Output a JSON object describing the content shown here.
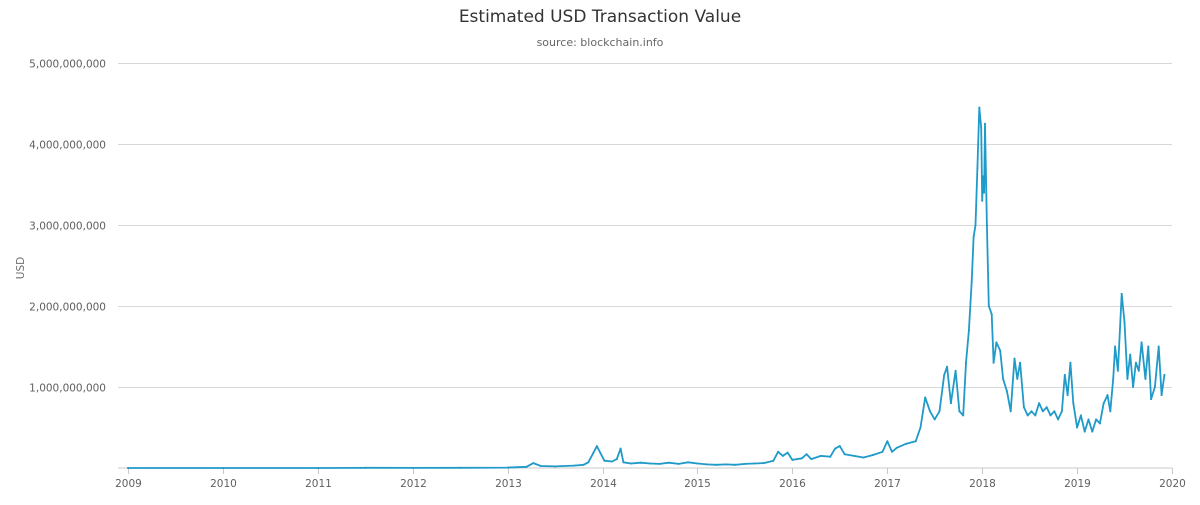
{
  "chart_data": {
    "type": "line",
    "title": "Estimated USD Transaction Value",
    "subtitle": "source: blockchain.info",
    "xlabel": "",
    "ylabel": "USD",
    "xlim": [
      2009.0,
      2020.0
    ],
    "ylim": [
      0,
      5000000000
    ],
    "grid": true,
    "legend": "none",
    "line_color": "#1f9ac9",
    "x_ticks": [
      {
        "value": 2009,
        "label": "2009"
      },
      {
        "value": 2010,
        "label": "2010"
      },
      {
        "value": 2011,
        "label": "2011"
      },
      {
        "value": 2012,
        "label": "2012"
      },
      {
        "value": 2013,
        "label": "2013"
      },
      {
        "value": 2014,
        "label": "2014"
      },
      {
        "value": 2015,
        "label": "2015"
      },
      {
        "value": 2016,
        "label": "2016"
      },
      {
        "value": 2017,
        "label": "2017"
      },
      {
        "value": 2018,
        "label": "2018"
      },
      {
        "value": 2019,
        "label": "2019"
      },
      {
        "value": 2020,
        "label": "2020"
      }
    ],
    "y_ticks": [
      {
        "value": 1000000000,
        "label": "1,000,000,000"
      },
      {
        "value": 2000000000,
        "label": "2,000,000,000"
      },
      {
        "value": 3000000000,
        "label": "3,000,000,000"
      },
      {
        "value": 4000000000,
        "label": "4,000,000,000"
      },
      {
        "value": 5000000000,
        "label": "5,000,000,000"
      }
    ],
    "series": [
      {
        "points": [
          [
            2009.0,
            0
          ],
          [
            2010.0,
            0
          ],
          [
            2011.0,
            0
          ],
          [
            2011.45,
            1000000
          ],
          [
            2011.5,
            3000000
          ],
          [
            2012.0,
            1000000
          ],
          [
            2012.5,
            2000000
          ],
          [
            2013.0,
            5000000
          ],
          [
            2013.2,
            15000000
          ],
          [
            2013.27,
            60000000
          ],
          [
            2013.35,
            25000000
          ],
          [
            2013.5,
            20000000
          ],
          [
            2013.7,
            30000000
          ],
          [
            2013.8,
            40000000
          ],
          [
            2013.85,
            70000000
          ],
          [
            2013.9,
            180000000
          ],
          [
            2013.94,
            270000000
          ],
          [
            2013.98,
            180000000
          ],
          [
            2014.02,
            90000000
          ],
          [
            2014.1,
            80000000
          ],
          [
            2014.15,
            110000000
          ],
          [
            2014.19,
            240000000
          ],
          [
            2014.22,
            70000000
          ],
          [
            2014.3,
            55000000
          ],
          [
            2014.4,
            65000000
          ],
          [
            2014.5,
            55000000
          ],
          [
            2014.6,
            50000000
          ],
          [
            2014.7,
            65000000
          ],
          [
            2014.8,
            50000000
          ],
          [
            2014.9,
            70000000
          ],
          [
            2015.0,
            55000000
          ],
          [
            2015.1,
            45000000
          ],
          [
            2015.2,
            40000000
          ],
          [
            2015.3,
            45000000
          ],
          [
            2015.4,
            40000000
          ],
          [
            2015.5,
            50000000
          ],
          [
            2015.6,
            55000000
          ],
          [
            2015.7,
            60000000
          ],
          [
            2015.8,
            90000000
          ],
          [
            2015.85,
            200000000
          ],
          [
            2015.9,
            150000000
          ],
          [
            2015.95,
            190000000
          ],
          [
            2016.0,
            100000000
          ],
          [
            2016.1,
            120000000
          ],
          [
            2016.15,
            170000000
          ],
          [
            2016.2,
            110000000
          ],
          [
            2016.3,
            150000000
          ],
          [
            2016.4,
            140000000
          ],
          [
            2016.45,
            240000000
          ],
          [
            2016.5,
            270000000
          ],
          [
            2016.55,
            170000000
          ],
          [
            2016.65,
            150000000
          ],
          [
            2016.75,
            130000000
          ],
          [
            2016.85,
            160000000
          ],
          [
            2016.95,
            200000000
          ],
          [
            2017.0,
            330000000
          ],
          [
            2017.05,
            200000000
          ],
          [
            2017.1,
            250000000
          ],
          [
            2017.2,
            300000000
          ],
          [
            2017.3,
            330000000
          ],
          [
            2017.35,
            500000000
          ],
          [
            2017.4,
            870000000
          ],
          [
            2017.45,
            700000000
          ],
          [
            2017.5,
            600000000
          ],
          [
            2017.55,
            700000000
          ],
          [
            2017.6,
            1150000000
          ],
          [
            2017.63,
            1250000000
          ],
          [
            2017.67,
            800000000
          ],
          [
            2017.72,
            1200000000
          ],
          [
            2017.76,
            700000000
          ],
          [
            2017.8,
            650000000
          ],
          [
            2017.83,
            1300000000
          ],
          [
            2017.86,
            1700000000
          ],
          [
            2017.89,
            2300000000
          ],
          [
            2017.91,
            2850000000
          ],
          [
            2017.93,
            3000000000
          ],
          [
            2017.95,
            3700000000
          ],
          [
            2017.97,
            4450000000
          ],
          [
            2017.99,
            4200000000
          ],
          [
            2018.0,
            3300000000
          ],
          [
            2018.01,
            3600000000
          ],
          [
            2018.02,
            3400000000
          ],
          [
            2018.03,
            4250000000
          ],
          [
            2018.05,
            3000000000
          ],
          [
            2018.07,
            2000000000
          ],
          [
            2018.1,
            1900000000
          ],
          [
            2018.12,
            1300000000
          ],
          [
            2018.15,
            1550000000
          ],
          [
            2018.19,
            1450000000
          ],
          [
            2018.22,
            1100000000
          ],
          [
            2018.26,
            950000000
          ],
          [
            2018.3,
            700000000
          ],
          [
            2018.34,
            1350000000
          ],
          [
            2018.37,
            1100000000
          ],
          [
            2018.4,
            1300000000
          ],
          [
            2018.44,
            750000000
          ],
          [
            2018.48,
            650000000
          ],
          [
            2018.52,
            700000000
          ],
          [
            2018.56,
            650000000
          ],
          [
            2018.6,
            800000000
          ],
          [
            2018.64,
            700000000
          ],
          [
            2018.68,
            750000000
          ],
          [
            2018.72,
            650000000
          ],
          [
            2018.76,
            700000000
          ],
          [
            2018.8,
            600000000
          ],
          [
            2018.84,
            700000000
          ],
          [
            2018.87,
            1150000000
          ],
          [
            2018.9,
            900000000
          ],
          [
            2018.93,
            1300000000
          ],
          [
            2018.96,
            800000000
          ],
          [
            2019.0,
            500000000
          ],
          [
            2019.04,
            650000000
          ],
          [
            2019.08,
            450000000
          ],
          [
            2019.12,
            600000000
          ],
          [
            2019.16,
            450000000
          ],
          [
            2019.2,
            600000000
          ],
          [
            2019.24,
            550000000
          ],
          [
            2019.28,
            800000000
          ],
          [
            2019.32,
            900000000
          ],
          [
            2019.35,
            700000000
          ],
          [
            2019.38,
            1100000000
          ],
          [
            2019.4,
            1500000000
          ],
          [
            2019.43,
            1200000000
          ],
          [
            2019.47,
            2150000000
          ],
          [
            2019.5,
            1800000000
          ],
          [
            2019.53,
            1100000000
          ],
          [
            2019.56,
            1400000000
          ],
          [
            2019.59,
            1000000000
          ],
          [
            2019.62,
            1300000000
          ],
          [
            2019.65,
            1200000000
          ],
          [
            2019.68,
            1550000000
          ],
          [
            2019.72,
            1100000000
          ],
          [
            2019.75,
            1500000000
          ],
          [
            2019.78,
            850000000
          ],
          [
            2019.82,
            1000000000
          ],
          [
            2019.86,
            1500000000
          ],
          [
            2019.89,
            900000000
          ],
          [
            2019.92,
            1150000000
          ]
        ]
      }
    ]
  }
}
